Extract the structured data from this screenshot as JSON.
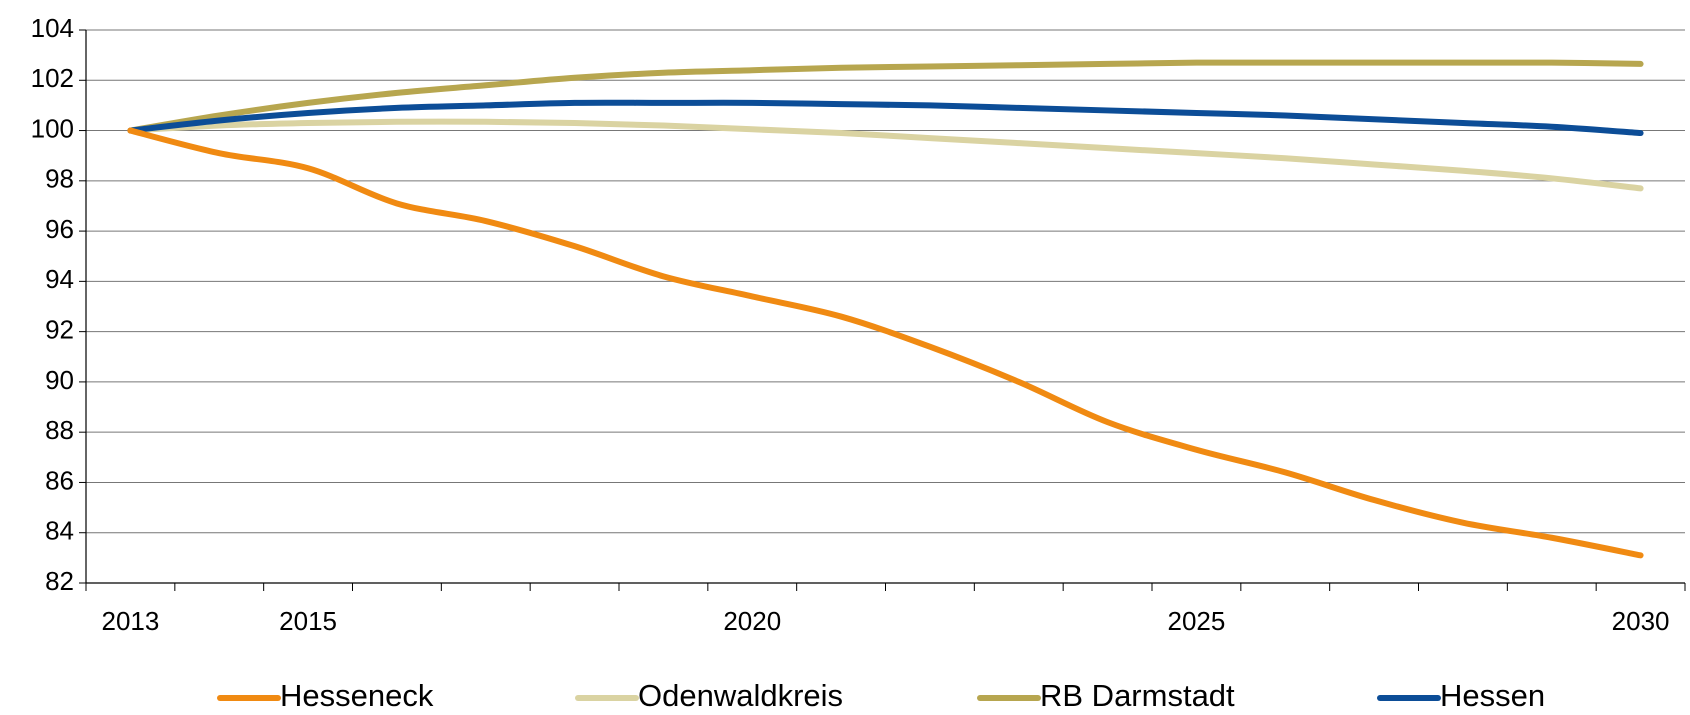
{
  "chart_data": {
    "type": "line",
    "categories": [
      "2013",
      null,
      "2015",
      null,
      null,
      null,
      null,
      "2020",
      null,
      null,
      null,
      null,
      "2025",
      null,
      null,
      null,
      null,
      "2030"
    ],
    "series": [
      {
        "name": "Hesseneck",
        "color": "#f08a12",
        "values": [
          100,
          99.1,
          98.5,
          97.1,
          96.4,
          95.4,
          94.2,
          93.4,
          92.6,
          91.4,
          90.0,
          88.4,
          87.3,
          86.4,
          85.3,
          84.4,
          83.8,
          83.1
        ]
      },
      {
        "name": "Odenwaldkreis",
        "color": "#dad3a2",
        "values": [
          100,
          100.2,
          100.3,
          100.35,
          100.35,
          100.3,
          100.2,
          100.05,
          99.9,
          99.7,
          99.5,
          99.3,
          99.1,
          98.9,
          98.65,
          98.4,
          98.1,
          97.7
        ]
      },
      {
        "name": "RB Darmstadt",
        "color": "#b7a64f",
        "values": [
          100,
          100.6,
          101.1,
          101.5,
          101.8,
          102.1,
          102.3,
          102.4,
          102.5,
          102.55,
          102.6,
          102.65,
          102.7,
          102.7,
          102.7,
          102.7,
          102.7,
          102.65
        ]
      },
      {
        "name": "Hessen",
        "color": "#0c4d97",
        "values": [
          100,
          100.4,
          100.7,
          100.9,
          101.0,
          101.1,
          101.1,
          101.1,
          101.05,
          101.0,
          100.9,
          100.8,
          100.7,
          100.6,
          100.45,
          100.3,
          100.15,
          99.9
        ]
      }
    ],
    "ylim": [
      82,
      104
    ],
    "yticks": [
      82,
      84,
      86,
      88,
      90,
      92,
      94,
      96,
      98,
      100,
      102,
      104
    ],
    "grid": true
  }
}
